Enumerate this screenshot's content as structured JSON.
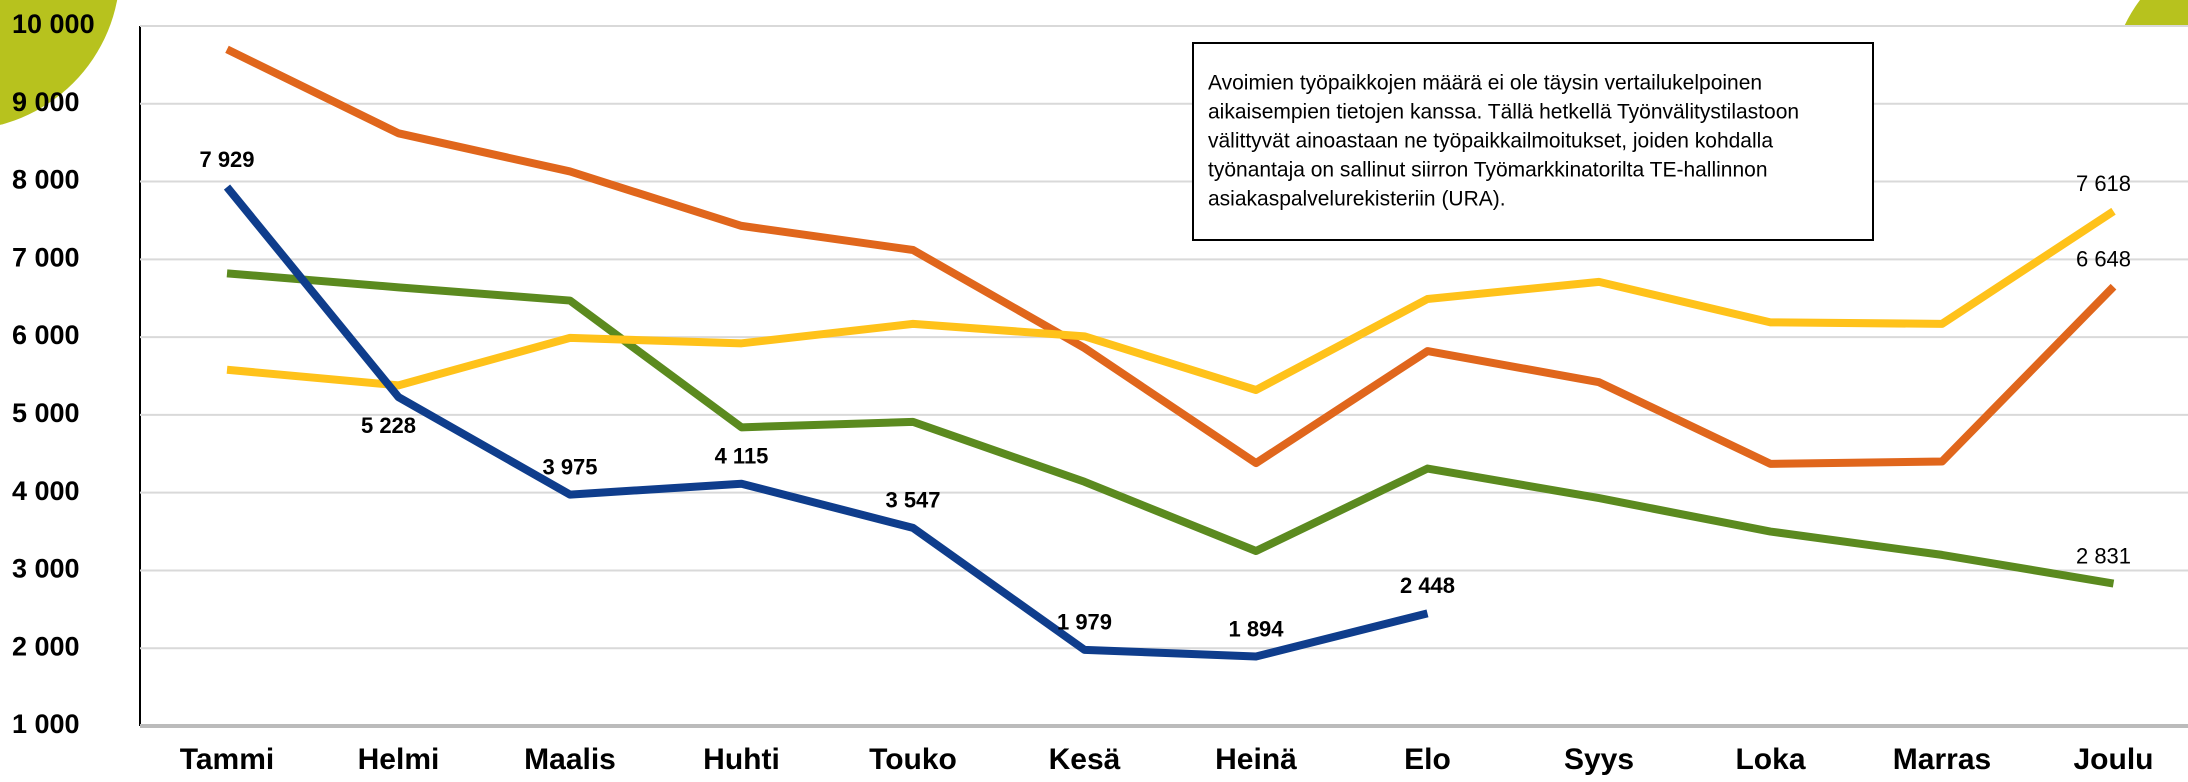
{
  "chart_data": {
    "type": "line",
    "categories": [
      "Tammi",
      "Helmi",
      "Maalis",
      "Huhti",
      "Touko",
      "Kesä",
      "Heinä",
      "Elo",
      "Syys",
      "Loka",
      "Marras",
      "Joulu"
    ],
    "series": [
      {
        "color": "#e0661c",
        "values": [
          9700,
          8620,
          8130,
          7430,
          7120,
          5860,
          4380,
          5820,
          5420,
          4370,
          4400,
          6648
        ],
        "value_labels": [
          null,
          null,
          null,
          null,
          null,
          null,
          null,
          null,
          null,
          null,
          null,
          "6 648"
        ]
      },
      {
        "color": "#5b8a1f",
        "values": [
          6820,
          6640,
          6470,
          4840,
          4910,
          4140,
          3250,
          4310,
          3930,
          3500,
          3200,
          2831
        ],
        "value_labels": [
          null,
          null,
          null,
          null,
          null,
          null,
          null,
          null,
          null,
          null,
          null,
          "2 831"
        ]
      },
      {
        "color": "#ffc21a",
        "values": [
          5580,
          5380,
          5990,
          5920,
          6170,
          6010,
          5320,
          6490,
          6710,
          6190,
          6170,
          7618
        ],
        "value_labels": [
          null,
          null,
          null,
          null,
          null,
          null,
          null,
          null,
          null,
          null,
          null,
          "7 618"
        ]
      },
      {
        "color": "#0f3d8c",
        "values": [
          7929,
          5228,
          3975,
          4115,
          3547,
          1979,
          1894,
          2448,
          null,
          null,
          null,
          null
        ],
        "value_labels": [
          "7 929",
          "5 228",
          "3 975",
          "4 115",
          "3 547",
          "1 979",
          "1 894",
          "2 448",
          null,
          null,
          null,
          null
        ]
      }
    ],
    "ylim": [
      1000,
      10000
    ],
    "yticks": [
      {
        "value": 1000,
        "label": "1 000"
      },
      {
        "value": 2000,
        "label": "2 000"
      },
      {
        "value": 3000,
        "label": "3 000"
      },
      {
        "value": 4000,
        "label": "4 000"
      },
      {
        "value": 5000,
        "label": "5 000"
      },
      {
        "value": 6000,
        "label": "6 000"
      },
      {
        "value": 7000,
        "label": "7 000"
      },
      {
        "value": 8000,
        "label": "8 000"
      },
      {
        "value": 9000,
        "label": "9 000"
      },
      {
        "value": 10000,
        "label": "10 000"
      }
    ],
    "grid": true,
    "annotation": [
      "Avoimien työpaikkojen määrä ei ole täysin vertailukelpoinen",
      "aikaisempien tietojen kanssa. Tällä hetkellä Työnvälitystilastoon",
      "välittyvät ainoastaan ne työpaikkailmoitukset, joiden kohdalla",
      "työnantaja on sallinut siirron Työmarkkinatorilta TE-hallinnon",
      "asiakaspalvelurekisteriin (URA)."
    ]
  }
}
